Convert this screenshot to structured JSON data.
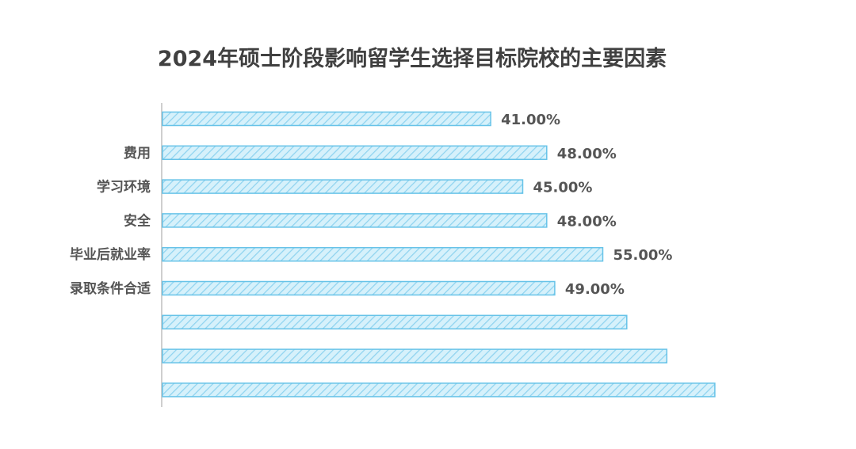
{
  "chart_data": {
    "type": "bar",
    "orientation": "horizontal",
    "title": "2024年硕士阶段影响留学生选择目标院校的主要因素",
    "categories": [
      "",
      "费用",
      "学习环境",
      "安全",
      "毕业后就业率",
      "录取条件合适",
      "",
      "",
      ""
    ],
    "values": [
      41,
      48,
      45,
      48,
      55,
      49,
      58,
      63,
      69
    ],
    "value_labels": [
      "41.00%",
      "48.00%",
      "45.00%",
      "48.00%",
      "55.00%",
      "49.00%",
      "",
      "",
      ""
    ],
    "xlim": [
      0,
      100
    ],
    "grid": false,
    "legend": "none",
    "colors": {
      "bar_fill": "#d6f1fb",
      "bar_stroke": "#67c3e8",
      "hatch": "#8fd3ef",
      "label": "#555555",
      "axis": "#bfbfbf"
    }
  }
}
